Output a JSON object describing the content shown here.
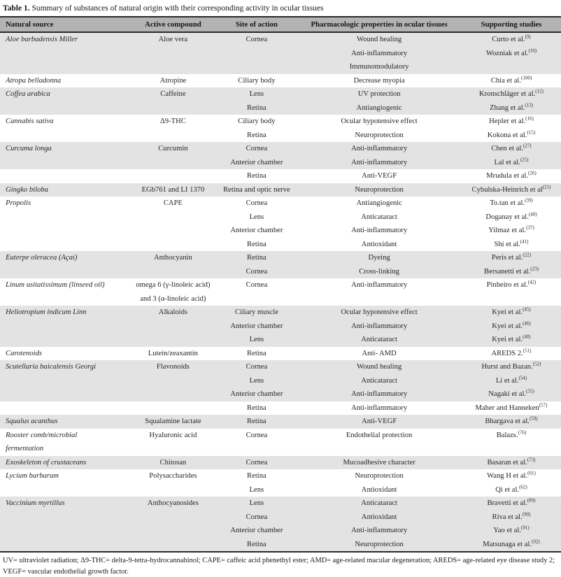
{
  "page": {
    "title_label": "Table 1.",
    "title_text": " Summary of substances of natural origin with their corresponding activity in ocular tissues",
    "footnote": "UV= ultraviolet radiation; Δ9-THC= delta-9-tetra-hydrocannabinol; CAPE= caffeic acid phenethyl ester; AMD= age-related macular degeneration; AREDS= age-related eye disease study 2; VEGF= vascular endothelial growth factor."
  },
  "colors": {
    "header_bg": "#b3b3b3",
    "band_bg": "#e3e3e3",
    "rule": "#2a2a2a",
    "text": "#262626"
  },
  "table": {
    "columns": [
      "Natural source",
      "Active compound",
      "Site of action",
      "Pharmacologic properties in ocular tissues",
      "Supporting studies"
    ],
    "rows": [
      {
        "source": "Aloe barbadensis Miller",
        "compound": "Aloe vera",
        "site": "Cornea",
        "property": "Wound healing",
        "study": "Curto et al.",
        "ref": "(9)",
        "shaded": true
      },
      {
        "source": "",
        "compound": "",
        "site": "",
        "property": "Anti-inflammatory",
        "study": "Wozniak et al.",
        "ref": "(10)",
        "shaded": true
      },
      {
        "source": "",
        "compound": "",
        "site": "",
        "property": "Immunomodulatory",
        "study": "",
        "ref": "",
        "shaded": true
      },
      {
        "source": "Atropa belladonna",
        "compound": "Atropine",
        "site": "Ciliary body",
        "property": "Decrease myopia",
        "study": "Chia et al.",
        "ref": "(100)",
        "shaded": false
      },
      {
        "source": "Coffea arabica",
        "compound": "Caffeine",
        "site": "Lens",
        "property": "UV protection",
        "study": "Kronschläger et al.",
        "ref": "(12)",
        "shaded": true
      },
      {
        "source": "",
        "compound": "",
        "site": "Retina",
        "property": "Antiangiogenic",
        "study": "Zhang et al.",
        "ref": "(13)",
        "shaded": true
      },
      {
        "source": "Cannabis sativa",
        "compound": "Δ9-THC",
        "site": "Ciliary body",
        "property": "Ocular hypotensive effect",
        "study": "Hepler et al.",
        "ref": "(16)",
        "shaded": false
      },
      {
        "source": "",
        "compound": "",
        "site": "Retina",
        "property": "Neuroprotection",
        "study": "Kokona et al.",
        "ref": "(15)",
        "shaded": false
      },
      {
        "source": "Curcuma longa",
        "compound": "Curcumin",
        "site": "Cornea",
        "property": "Anti-inflammatory",
        "study": "Chen et al.",
        "ref": "(27)",
        "shaded": true
      },
      {
        "source": "",
        "compound": "",
        "site": "Anterior chamber",
        "property": "Anti-inflammatory",
        "study": "Lal et al.",
        "ref": "(25)",
        "shaded": true
      },
      {
        "source": "",
        "compound": "",
        "site": "Retina",
        "property": "Anti-VEGF",
        "study": "Mrudula et al.",
        "ref": "(26)",
        "shaded": false
      },
      {
        "source": "Gingko biloba",
        "compound": "EGb761 and LI 1370",
        "site": "Retina and optic nerve",
        "property": "Neuroprotection",
        "study": "Cybulska-Heinrich et al",
        "ref": "(21)",
        "shaded": true
      },
      {
        "source": "Propolis",
        "compound": "CAPE",
        "site": "Cornea",
        "property": "Antiangiogenic",
        "study": "To.tan et al.",
        "ref": "(39)",
        "shaded": false
      },
      {
        "source": "",
        "compound": "",
        "site": "Lens",
        "property": "Anticataract",
        "study": "Doganay et al.",
        "ref": "(40)",
        "shaded": false
      },
      {
        "source": "",
        "compound": "",
        "site": "Anterior chamber",
        "property": "Anti-inflammatory",
        "study": "Yilmaz et al.",
        "ref": "(37)",
        "shaded": false
      },
      {
        "source": "",
        "compound": "",
        "site": "Retina",
        "property": "Antioxidant",
        "study": "Shi et al.",
        "ref": "(41)",
        "shaded": false
      },
      {
        "source": "Euterpe oleracea (Açaí)",
        "compound": "Anthocyanin",
        "site": "Retina",
        "property": "Dyeing",
        "study": "Peris et al.",
        "ref": "(22)",
        "shaded": true
      },
      {
        "source": "",
        "compound": "",
        "site": "Cornea",
        "property": "Cross-linking",
        "study": "Bersanetti et al.",
        "ref": "(23)",
        "shaded": true
      },
      {
        "source": "Linum usitatissimum (linseed oil)",
        "compound": "omega 6 (γ-linoleic acid)\nand 3 (α-linoleic acid)",
        "site": "Cornea",
        "property": "Anti-inflammatory",
        "study": "Pinheiro et al.",
        "ref": "(42)",
        "shaded": false
      },
      {
        "source": "Heliotropium indicum Linn",
        "compound": "Alkaloids",
        "site": "Ciliary muscle",
        "property": "Ocular hypotensive effect",
        "study": "Kyei et al.",
        "ref": "(45)",
        "shaded": true
      },
      {
        "source": "",
        "compound": "",
        "site": "Anterior chamber",
        "property": "Anti-inflammatory",
        "study": "Kyei et al.",
        "ref": "(46)",
        "shaded": true
      },
      {
        "source": "",
        "compound": "",
        "site": "Lens",
        "property": "Anticataract",
        "study": "Kyei et al.",
        "ref": "(48)",
        "shaded": true
      },
      {
        "source": "Carotenoids",
        "compound": "Lutein/zeaxantin",
        "site": "Retina",
        "property": "Anti- AMD",
        "study": "AREDS 2.",
        "ref": "(51)",
        "shaded": false
      },
      {
        "source": "Scutellaria baicalensis Georgi",
        "compound": "Flavonoids",
        "site": "Cornea",
        "property": "Wound healing",
        "study": "Hurst and Bazan.",
        "ref": "(52)",
        "shaded": true
      },
      {
        "source": "",
        "compound": "",
        "site": "Lens",
        "property": "Anticataract",
        "study": "Li et al.",
        "ref": "(54)",
        "shaded": true
      },
      {
        "source": "",
        "compound": "",
        "site": "Anterior chamber",
        "property": "Anti-inflammatory",
        "study": "Nagaki et al.",
        "ref": "(55)",
        "shaded": true
      },
      {
        "source": "",
        "compound": "",
        "site": "Retina",
        "property": "Anti-inflammatory",
        "study": "Maher and Hanneken",
        "ref": "(57)",
        "shaded": false
      },
      {
        "source": "Squalus acanthus",
        "compound": "Squalamine lactate",
        "site": "Retina",
        "property": "Anti-VEGF",
        "study": "Bhargava et al.",
        "ref": "(59)",
        "shaded": true
      },
      {
        "source": "Rooster comb/microbial\nfermentation",
        "compound": "Hyaluronic acid",
        "site": "Cornea",
        "property": "Endothelial protection",
        "study": "Balazs.",
        "ref": "(76)",
        "shaded": false
      },
      {
        "source": "Exoskeleton of crustaceans",
        "compound": "Chitosan",
        "site": "Cornea",
        "property": "Mucoadhesive character",
        "study": "Basaran et al.",
        "ref": "(73)",
        "shaded": true
      },
      {
        "source": "Lycium barbarum",
        "compound": "Polysaccharides",
        "site": "Retina",
        "property": "Neuroprotection",
        "study": "Wang H et al.",
        "ref": "(61)",
        "shaded": false
      },
      {
        "source": "",
        "compound": "",
        "site": "Lens",
        "property": "Antioxidant",
        "study": "Qi et al.",
        "ref": "(62)",
        "shaded": false
      },
      {
        "source": "Vaccinium myrtillus",
        "compound": "Anthocyanosides",
        "site": "Lens",
        "property": "Anticataract",
        "study": "Bravetti et al.",
        "ref": "(89)",
        "shaded": true
      },
      {
        "source": "",
        "compound": "",
        "site": "Cornea",
        "property": "Antioxidant",
        "study": "Riva et al.",
        "ref": "(90)",
        "shaded": true
      },
      {
        "source": "",
        "compound": "",
        "site": "Anterior chamber",
        "property": "Anti-inflammatory",
        "study": "Yao et al.",
        "ref": "(91)",
        "shaded": true
      },
      {
        "source": "",
        "compound": "",
        "site": "Retina",
        "property": "Neuroprotection",
        "study": "Matsunaga et al.",
        "ref": "(92)",
        "shaded": true
      }
    ]
  }
}
